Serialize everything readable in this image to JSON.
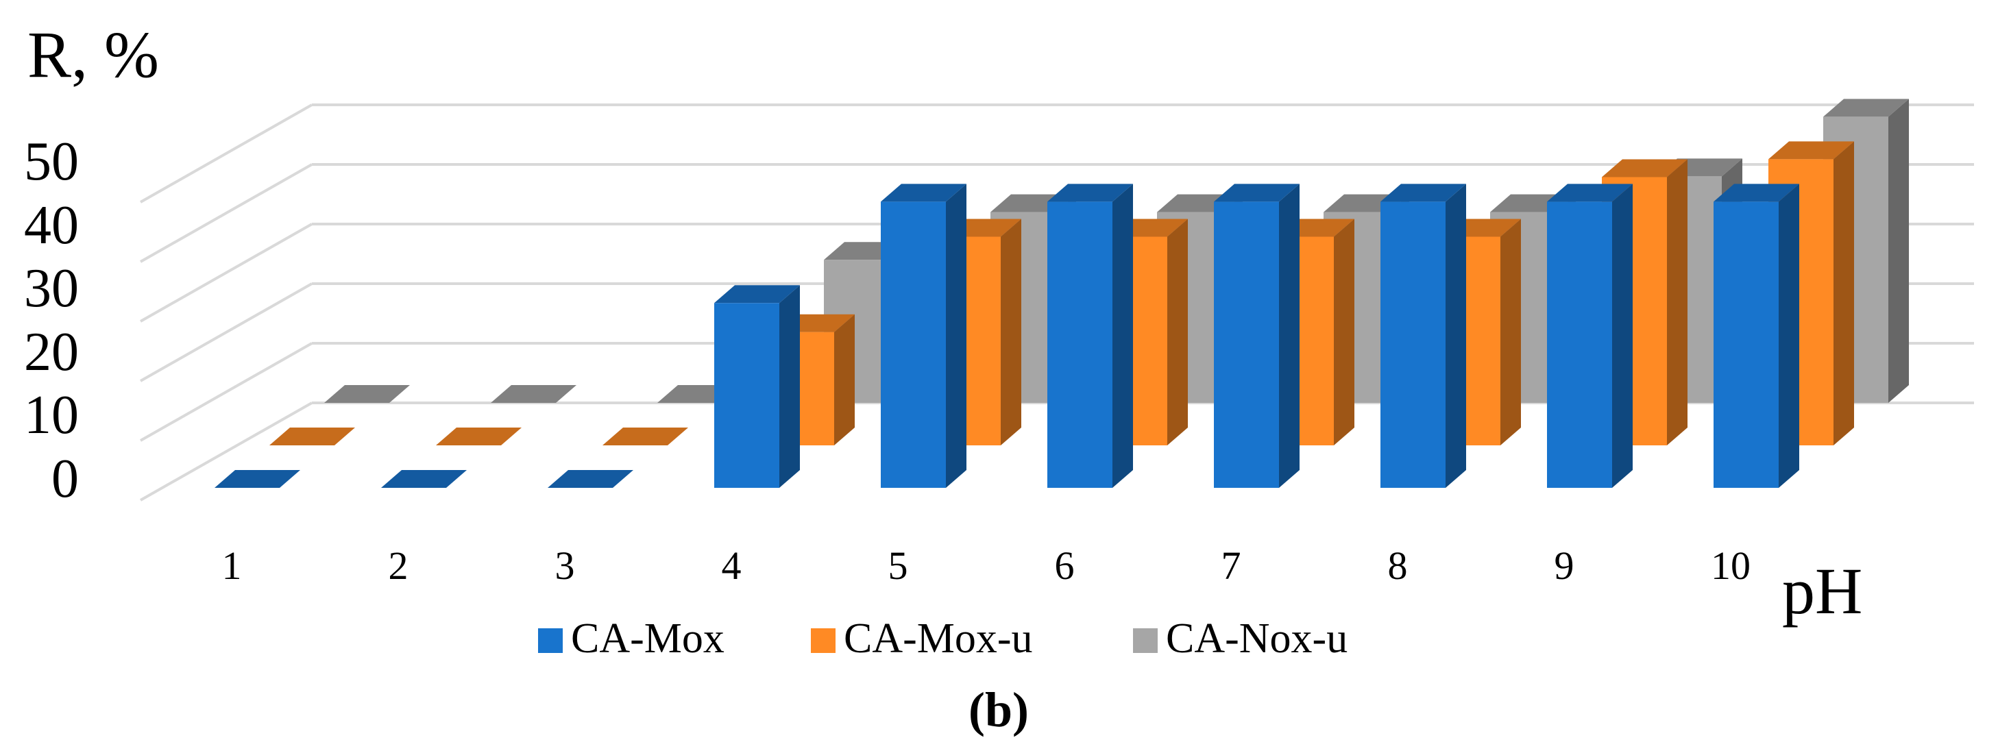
{
  "chart_data": {
    "type": "bar",
    "title": "",
    "ylabel": "R, %",
    "xlabel": "pH",
    "panel_label": "(b)",
    "ylim": [
      0,
      50
    ],
    "ytick_values": [
      0,
      10,
      20,
      30,
      40,
      50
    ],
    "ytick_labels": [
      "0",
      "10",
      "20",
      "30",
      "40",
      "50"
    ],
    "categories": [
      "1",
      "2",
      "3",
      "4",
      "5",
      "6",
      "7",
      "8",
      "9",
      "10"
    ],
    "legend_position": "bottom",
    "grid": true,
    "series": [
      {
        "name": "CA-Mox",
        "color": "#1874CD",
        "values": [
          0,
          0,
          0,
          31,
          48,
          48,
          48,
          48,
          48,
          48
        ]
      },
      {
        "name": "CA-Mox-u",
        "color": "#FF8A24",
        "values": [
          0,
          0,
          0,
          19,
          35,
          35,
          35,
          35,
          45,
          48
        ]
      },
      {
        "name": "CA-Nox-u",
        "color": "#A6A6A6",
        "values": [
          0,
          0,
          0,
          24,
          32,
          32,
          32,
          32,
          38,
          48
        ]
      }
    ]
  }
}
